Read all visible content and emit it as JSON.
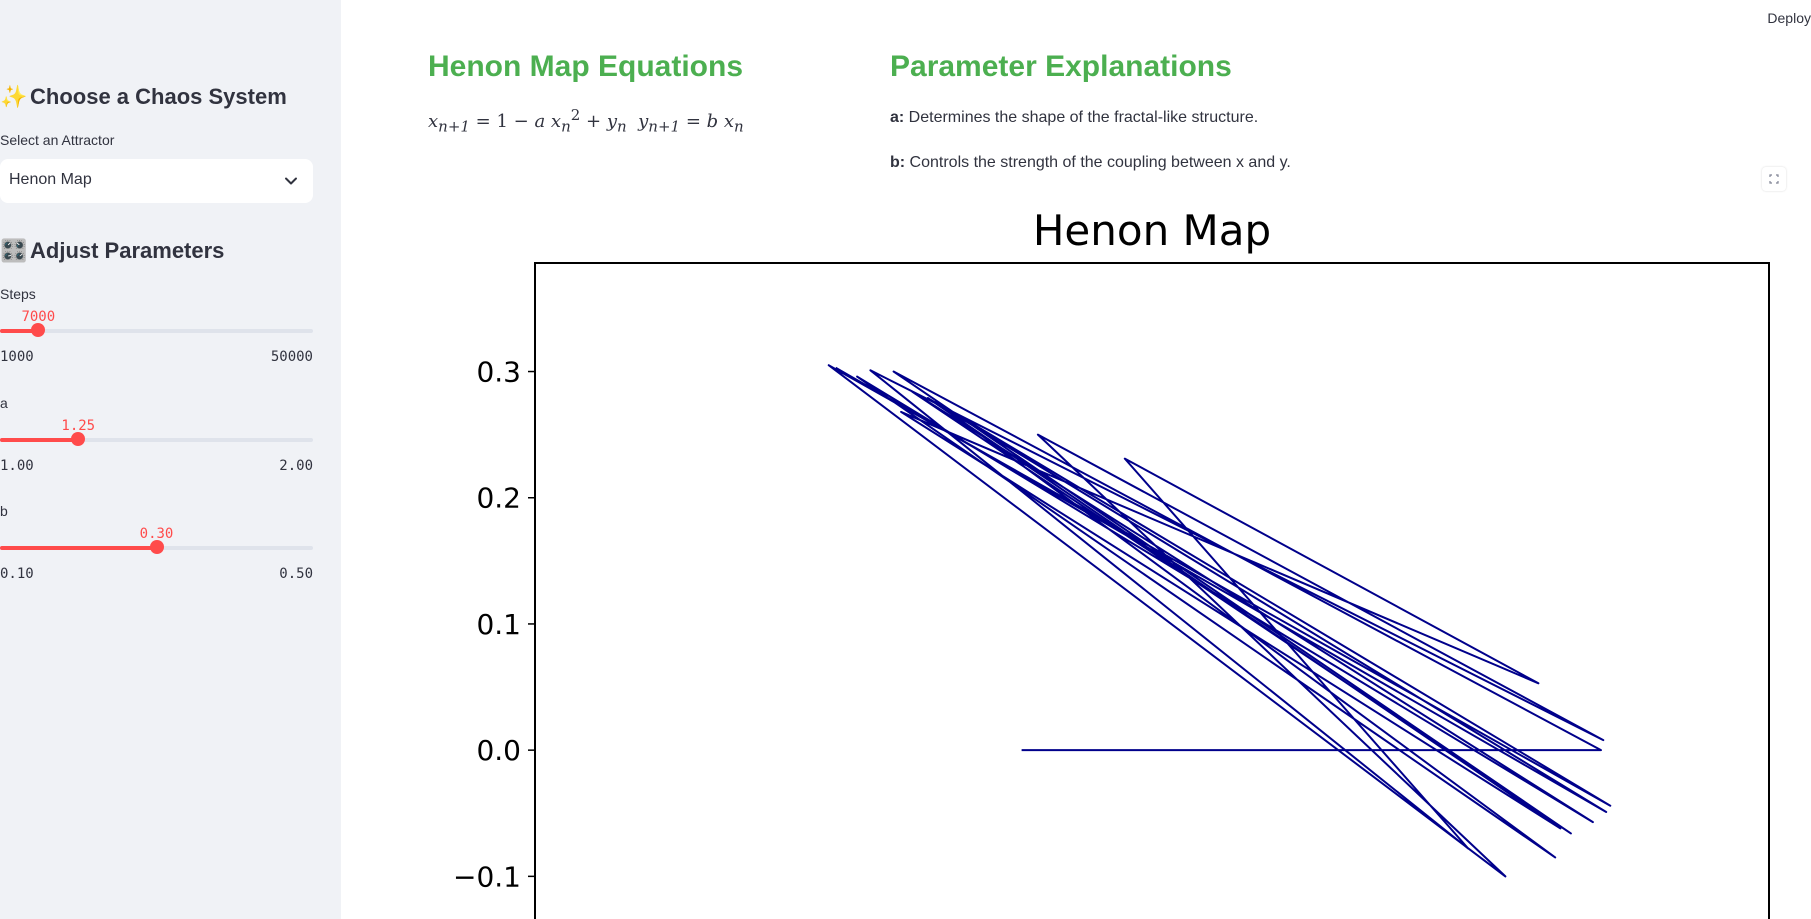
{
  "sidebar": {
    "system_heading": {
      "emoji": "✨",
      "text": "Choose a Chaos System"
    },
    "attractor_label": "Select an Attractor",
    "attractor_value": "Henon Map",
    "params_heading": {
      "emoji": "🎛️",
      "text": "Adjust Parameters"
    },
    "sliders": [
      {
        "label": "Steps",
        "value": 7000,
        "value_label": "7000",
        "min": 1000,
        "max": 50000,
        "min_label": "1000",
        "max_label": "50000"
      },
      {
        "label": "a",
        "value": 1.25,
        "value_label": "1.25",
        "min": 1.0,
        "max": 2.0,
        "min_label": "1.00",
        "max_label": "2.00"
      },
      {
        "label": "b",
        "value": 0.3,
        "value_label": "0.30",
        "min": 0.1,
        "max": 0.5,
        "min_label": "0.10",
        "max_label": "0.50"
      }
    ]
  },
  "header": {
    "deploy_label": "Deploy"
  },
  "main": {
    "equations_heading": "Henon Map Equations",
    "params_heading": "Parameter Explanations",
    "params": [
      {
        "name": "a:",
        "text": " Determines the shape of the fractal-like structure."
      },
      {
        "name": "b:",
        "text": " Controls the strength of the coupling between x and y."
      }
    ]
  },
  "colors": {
    "accent": "#ff4b4b",
    "heading_green": "#4caf50",
    "line": "#00008b",
    "sidebar_bg": "#f0f2f6"
  },
  "chart_data": {
    "type": "line",
    "title": "Henon Map",
    "yticks": [
      "0.3",
      "0.2",
      "0.1",
      "0.0",
      "−0.1"
    ],
    "ytick_values": [
      0.3,
      0.2,
      0.1,
      0.0,
      -0.1
    ],
    "ylim": [
      -0.133,
      0.386
    ],
    "xlim": [
      -0.84,
      1.29
    ],
    "x": [
      0.0,
      1.0,
      -0.221,
      0.948,
      -0.189,
      0.986,
      -0.284,
      0.921,
      -0.148,
      1.016,
      -0.333,
      0.835,
      0.028,
      1.004,
      -0.261,
      0.771,
      0.178,
      0.892,
      -0.208,
      0.93,
      -0.162,
      1.009,
      -0.321
    ],
    "y": [
      0.0,
      0.0,
      0.3,
      -0.066,
      0.284,
      -0.057,
      0.296,
      -0.085,
      0.276,
      -0.044,
      0.305,
      -0.1,
      0.25,
      0.008,
      0.301,
      -0.078,
      0.231,
      0.053,
      0.268,
      -0.062,
      0.279,
      -0.049,
      0.303
    ]
  }
}
